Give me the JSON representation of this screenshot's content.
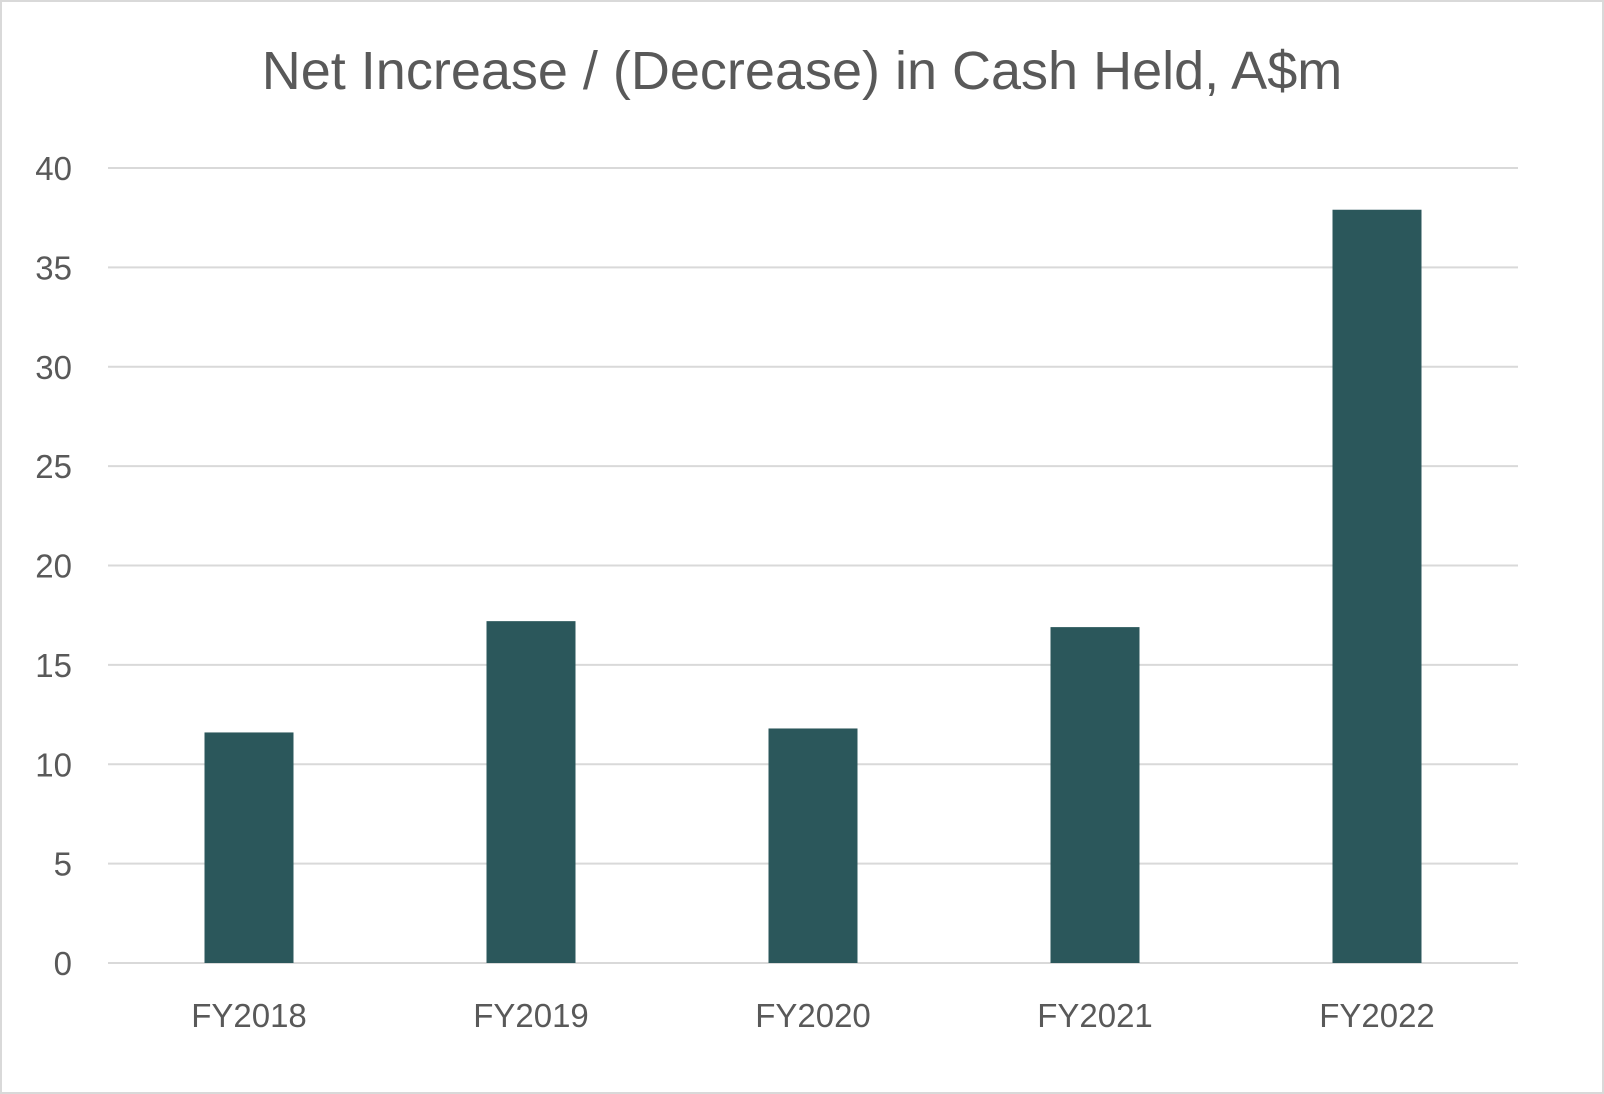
{
  "chart_data": {
    "type": "bar",
    "title": "Net Increase /  (Decrease) in Cash Held, A$m",
    "xlabel": "",
    "ylabel": "",
    "categories": [
      "FY2018",
      "FY2019",
      "FY2020",
      "FY2021",
      "FY2022"
    ],
    "values": [
      11.6,
      17.2,
      11.8,
      16.9,
      37.9
    ],
    "ylim": [
      0,
      40
    ],
    "yticks": [
      0,
      5,
      10,
      15,
      20,
      25,
      30,
      35,
      40
    ],
    "grid": true,
    "legend": "none",
    "colors": {
      "bar": "#2b575b",
      "grid": "#d9d9d9",
      "text": "#595959"
    }
  }
}
